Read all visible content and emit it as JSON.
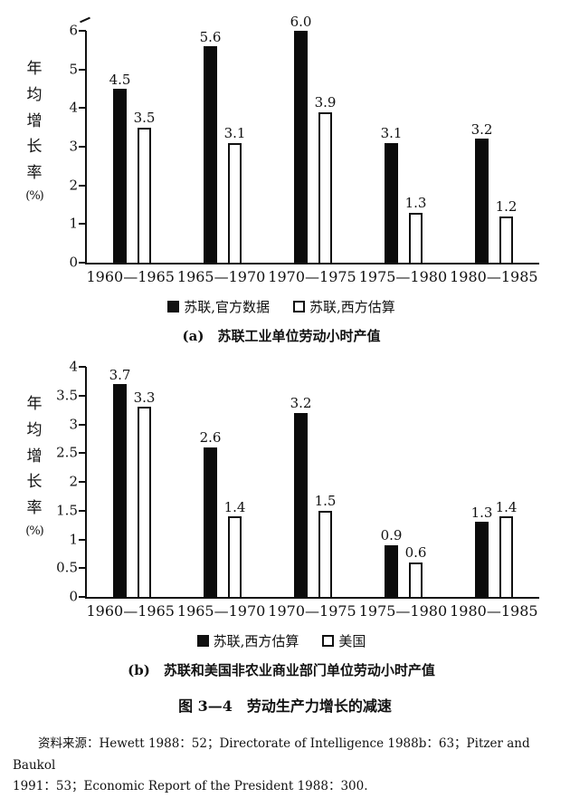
{
  "page": {
    "figure_title": "图 3—4　劳动生产力增长的减速",
    "source_line1": "资料来源：Hewett 1988：52；Directorate of Intelligence 1988b：63；Pitzer and Baukol",
    "source_line2": "1991：53；Economic Report of the President 1988：300."
  },
  "chart_data": [
    {
      "type": "bar",
      "caption": "(a)　苏联工业单位劳动小时产值",
      "ylabel": "年均增长率(%)",
      "ylabel_chars": [
        "年",
        "均",
        "增",
        "长",
        "率",
        "(%)"
      ],
      "categories": [
        "1960—1965",
        "1965—1970",
        "1970—1975",
        "1975—1980",
        "1980—1985"
      ],
      "series": [
        {
          "name": "苏联,官方数据",
          "fill": "black",
          "values": [
            4.5,
            5.6,
            6.0,
            3.1,
            3.2
          ]
        },
        {
          "name": "苏联,西方估算",
          "fill": "white",
          "values": [
            3.5,
            3.1,
            3.9,
            1.3,
            1.2
          ]
        }
      ],
      "ylim": [
        0,
        6
      ],
      "ytick_step": 1,
      "ytick_labels": [
        "0",
        "1",
        "2",
        "3",
        "4",
        "5",
        "6"
      ],
      "grid": false,
      "legend_position": "bottom",
      "axis_break_top": true
    },
    {
      "type": "bar",
      "caption": "(b)　苏联和美国非农业商业部门单位劳动小时产值",
      "ylabel": "年均增长率(%)",
      "ylabel_chars": [
        "年",
        "均",
        "增",
        "长",
        "率",
        "(%)"
      ],
      "categories": [
        "1960—1965",
        "1965—1970",
        "1970—1975",
        "1975—1980",
        "1980—1985"
      ],
      "series": [
        {
          "name": "苏联,西方估算",
          "fill": "black",
          "values": [
            3.7,
            2.6,
            3.2,
            0.9,
            1.3
          ]
        },
        {
          "name": "美国",
          "fill": "white",
          "values": [
            3.3,
            1.4,
            1.5,
            0.6,
            1.4
          ]
        }
      ],
      "ylim": [
        0,
        4
      ],
      "ytick_step": 0.5,
      "ytick_labels": [
        "0",
        "0.5",
        "1",
        "1.5",
        "2",
        "2.5",
        "3",
        "3.5",
        "4"
      ],
      "grid": false,
      "legend_position": "bottom",
      "axis_break_top": false
    }
  ]
}
